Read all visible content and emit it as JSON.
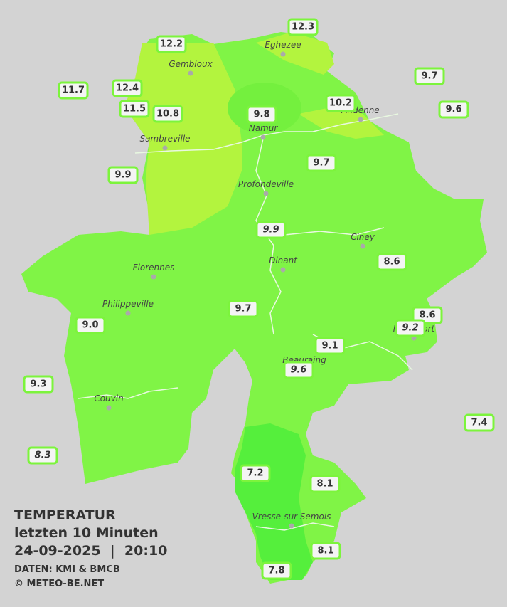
{
  "header": {
    "title": "TEMPERATUR",
    "period": "letzten 10 Minuten",
    "datetime": "24-09-2025  |  20:10",
    "source": "DATEN: KMI & BMCB",
    "copyright": "© METEO-BE.NET"
  },
  "cities": [
    "Eghezee",
    "Gembloux",
    "Andenne",
    "Sambreville",
    "Namur",
    "Profondeville",
    "Ciney",
    "Florennes",
    "Dinant",
    "Philippeville",
    "Rochefort",
    "Beauraing",
    "Couvin",
    "Vresse-sur-Semois"
  ],
  "stations": [
    {
      "label": "12.3"
    },
    {
      "label": "12.2"
    },
    {
      "label": "9.7"
    },
    {
      "label": "11.7"
    },
    {
      "label": "12.4"
    },
    {
      "label": "10.2"
    },
    {
      "label": "11.5"
    },
    {
      "label": "10.8"
    },
    {
      "label": "9.8"
    },
    {
      "label": "9.6"
    },
    {
      "label": "9.7"
    },
    {
      "label": "9.9"
    },
    {
      "label": "9.9",
      "italic": true
    },
    {
      "label": "8.6"
    },
    {
      "label": "9.7"
    },
    {
      "label": "8.6"
    },
    {
      "label": "9.0"
    },
    {
      "label": "9.2",
      "italic": true
    },
    {
      "label": "9.1"
    },
    {
      "label": "9.6",
      "italic": true
    },
    {
      "label": "9.3"
    },
    {
      "label": "7.4"
    },
    {
      "label": "8.3",
      "italic": true
    },
    {
      "label": "7.2"
    },
    {
      "label": "8.1"
    },
    {
      "label": "8.1"
    },
    {
      "label": "7.8"
    }
  ]
}
